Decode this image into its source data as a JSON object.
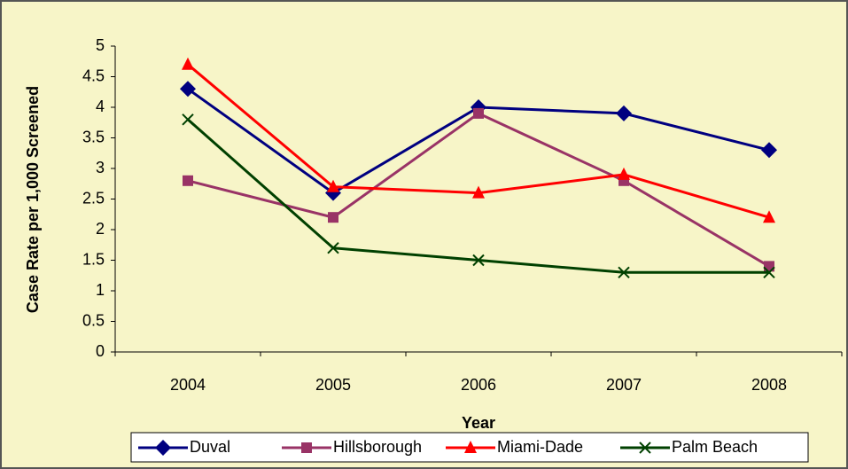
{
  "chart_data": {
    "type": "line",
    "xlabel": "Year",
    "ylabel": "Case Rate per 1,000 Screened",
    "categories": [
      "2004",
      "2005",
      "2006",
      "2007",
      "2008"
    ],
    "series": [
      {
        "name": "Duval",
        "color": "#000080",
        "marker": "diamond",
        "values": [
          4.3,
          2.6,
          4.0,
          3.9,
          3.3
        ]
      },
      {
        "name": "Hillsborough",
        "color": "#993366",
        "marker": "square",
        "values": [
          2.8,
          2.2,
          3.9,
          2.8,
          1.4
        ]
      },
      {
        "name": "Miami-Dade",
        "color": "#ff0000",
        "marker": "triangle",
        "values": [
          4.7,
          2.7,
          2.6,
          2.9,
          2.2
        ]
      },
      {
        "name": "Palm Beach",
        "color": "#004000",
        "marker": "x",
        "values": [
          3.8,
          1.7,
          1.5,
          1.3,
          1.3
        ]
      }
    ],
    "ylim": [
      0,
      5
    ],
    "yticks": [
      0,
      0.5,
      1,
      1.5,
      2,
      2.5,
      3,
      3.5,
      4,
      4.5,
      5
    ],
    "grid": false
  }
}
